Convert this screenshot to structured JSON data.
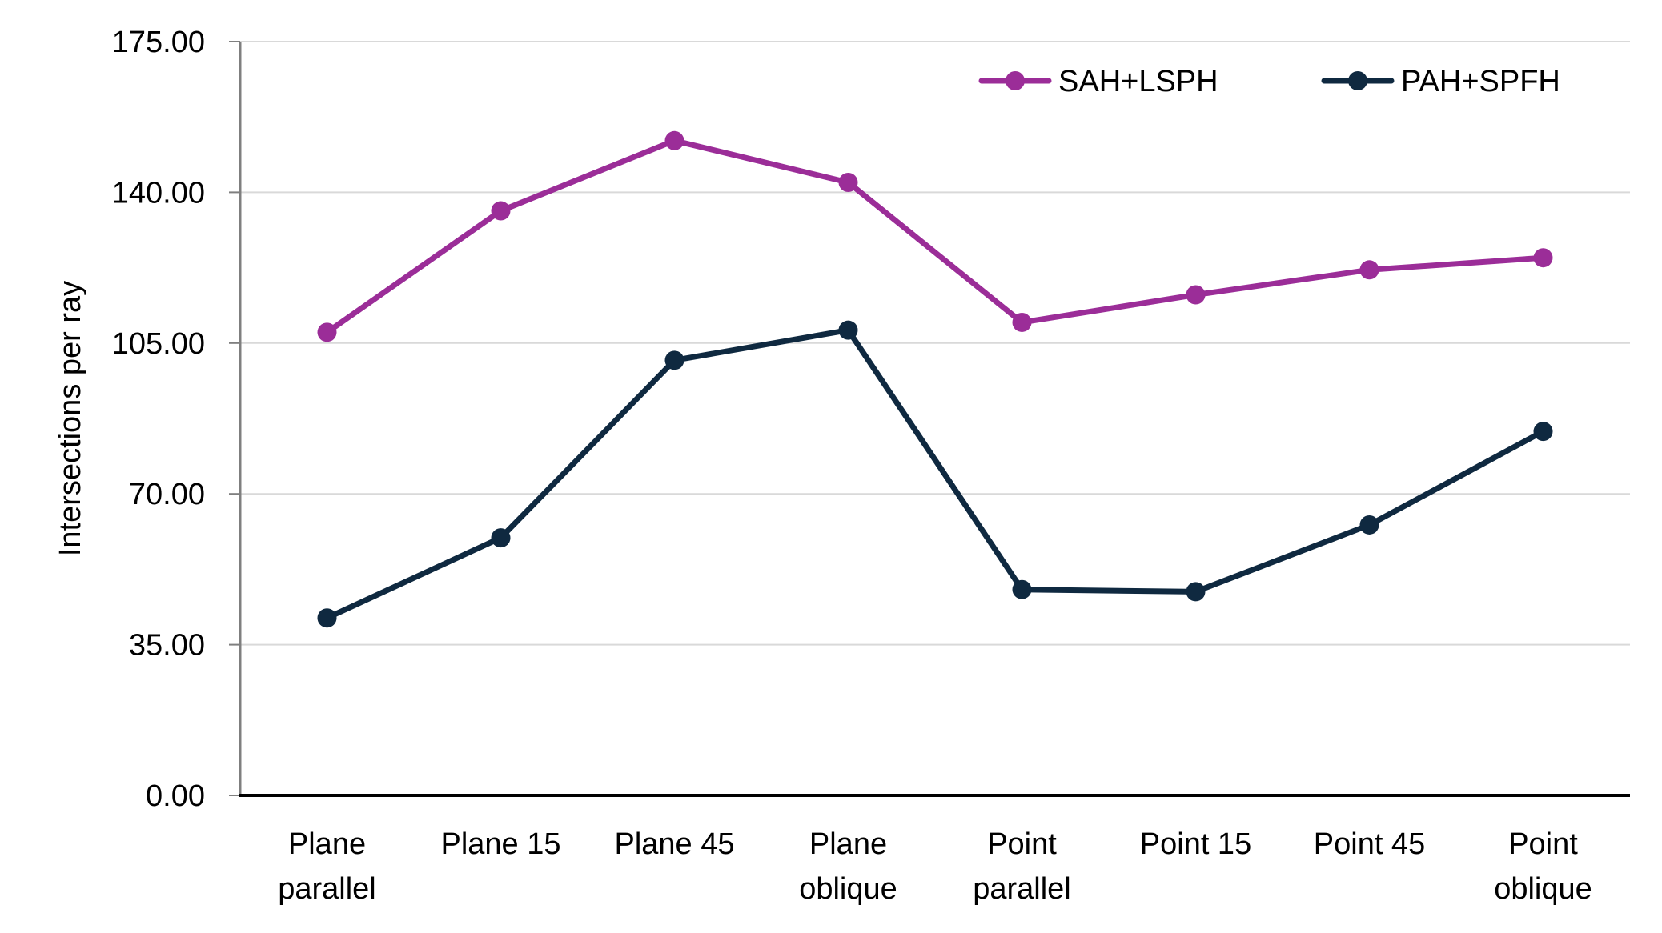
{
  "chart_data": {
    "type": "line",
    "categories": [
      [
        "Plane",
        "parallel"
      ],
      [
        "Plane 15"
      ],
      [
        "Plane 45"
      ],
      [
        "Plane",
        "oblique"
      ],
      [
        "Point",
        "parallel"
      ],
      [
        "Point 15"
      ],
      [
        "Point 45"
      ],
      [
        "Point",
        "oblique"
      ]
    ],
    "series": [
      {
        "name": "SAH+LSPH",
        "color": "#9B2D98",
        "values": [
          107.5,
          135.7,
          152.0,
          142.3,
          109.8,
          116.2,
          122.0,
          124.8
        ]
      },
      {
        "name": "PAH+SPFH",
        "color": "#0F2940",
        "values": [
          41.2,
          59.8,
          101.0,
          108.0,
          47.8,
          47.3,
          62.8,
          84.5
        ]
      }
    ],
    "title": "",
    "xlabel": "",
    "ylabel": "Intersections per ray",
    "ylim": [
      0,
      175
    ],
    "yticks": [
      0,
      35,
      70,
      105,
      140,
      175
    ],
    "ytick_labels": [
      "0.00",
      "35.00",
      "70.00",
      "105.00",
      "140.00",
      "175.00"
    ],
    "grid": "horizontal",
    "legend": "top-right"
  }
}
